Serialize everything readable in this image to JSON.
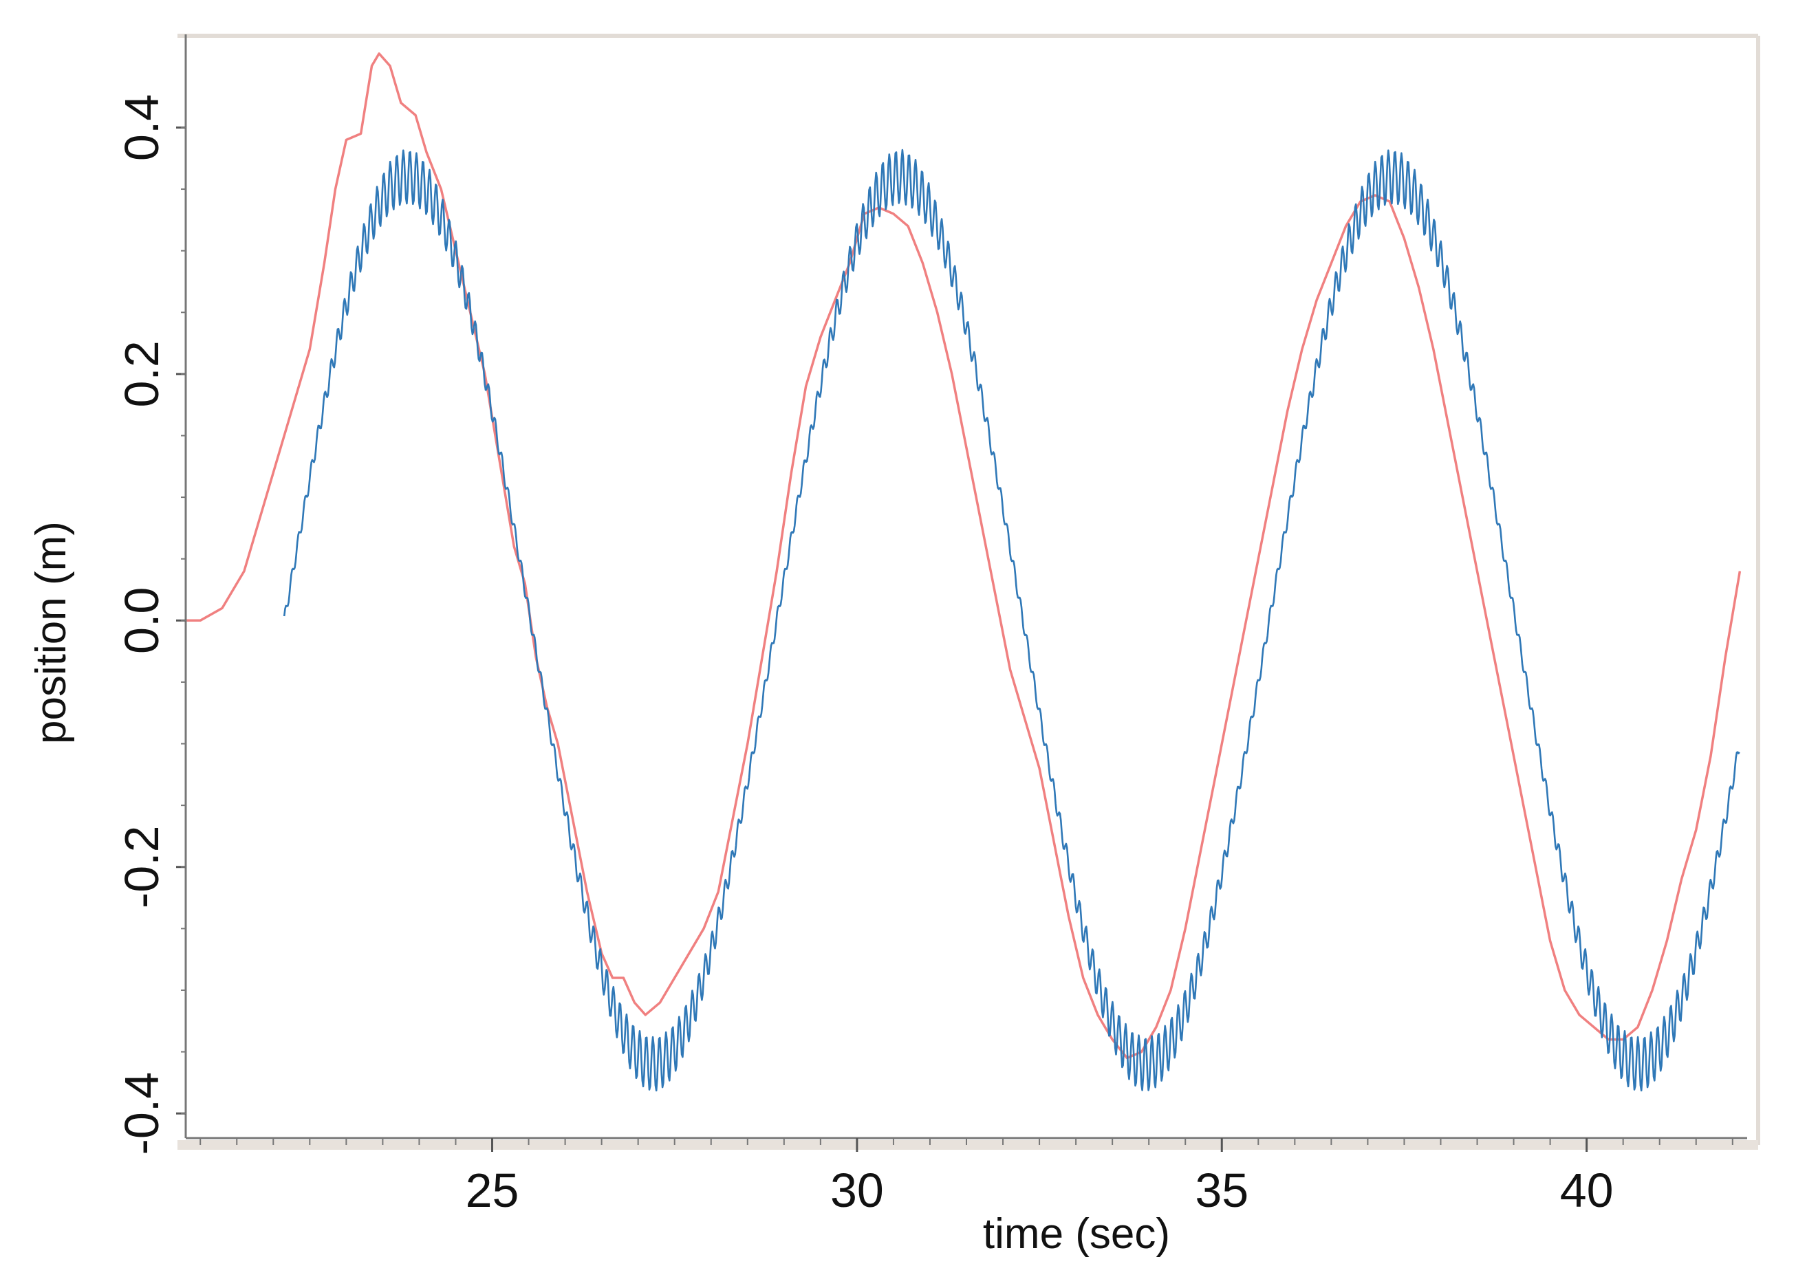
{
  "chart_data": {
    "type": "line",
    "title": "",
    "xlabel": "time (sec)",
    "ylabel": "position (m)",
    "xlim": [
      20.8,
      42.2
    ],
    "ylim": [
      -0.42,
      0.47
    ],
    "x_ticks": [
      {
        "value": 25,
        "label": "25"
      },
      {
        "value": 30,
        "label": "30"
      },
      {
        "value": 35,
        "label": "35"
      },
      {
        "value": 40,
        "label": "40"
      }
    ],
    "y_ticks": [
      {
        "value": 0.4,
        "label": "0.4"
      },
      {
        "value": 0.2,
        "label": "0.2"
      },
      {
        "value": 0.0,
        "label": "0.0"
      },
      {
        "value": -0.2,
        "label": "-0.2"
      },
      {
        "value": -0.4,
        "label": "-0.4"
      }
    ],
    "minor_tick_step": 0.5,
    "grid": false,
    "legend": "none",
    "series": [
      {
        "color": "#f08080",
        "points": [
          [
            20.8,
            0.0
          ],
          [
            21.0,
            0.0
          ],
          [
            21.3,
            0.01
          ],
          [
            21.6,
            0.04
          ],
          [
            21.9,
            0.1
          ],
          [
            22.2,
            0.16
          ],
          [
            22.5,
            0.22
          ],
          [
            22.7,
            0.29
          ],
          [
            22.85,
            0.35
          ],
          [
            23.0,
            0.39
          ],
          [
            23.2,
            0.395
          ],
          [
            23.35,
            0.45
          ],
          [
            23.45,
            0.46
          ],
          [
            23.6,
            0.45
          ],
          [
            23.75,
            0.42
          ],
          [
            23.95,
            0.41
          ],
          [
            24.1,
            0.38
          ],
          [
            24.3,
            0.35
          ],
          [
            24.5,
            0.3
          ],
          [
            24.7,
            0.25
          ],
          [
            24.9,
            0.2
          ],
          [
            25.1,
            0.13
          ],
          [
            25.3,
            0.06
          ],
          [
            25.45,
            0.03
          ],
          [
            25.6,
            -0.03
          ],
          [
            25.75,
            -0.07
          ],
          [
            25.9,
            -0.1
          ],
          [
            26.1,
            -0.16
          ],
          [
            26.3,
            -0.22
          ],
          [
            26.5,
            -0.27
          ],
          [
            26.65,
            -0.29
          ],
          [
            26.8,
            -0.29
          ],
          [
            26.95,
            -0.31
          ],
          [
            27.1,
            -0.32
          ],
          [
            27.3,
            -0.31
          ],
          [
            27.5,
            -0.29
          ],
          [
            27.7,
            -0.27
          ],
          [
            27.9,
            -0.25
          ],
          [
            28.1,
            -0.22
          ],
          [
            28.3,
            -0.16
          ],
          [
            28.5,
            -0.1
          ],
          [
            28.7,
            -0.03
          ],
          [
            28.9,
            0.04
          ],
          [
            29.1,
            0.12
          ],
          [
            29.3,
            0.19
          ],
          [
            29.5,
            0.23
          ],
          [
            29.7,
            0.26
          ],
          [
            29.9,
            0.29
          ],
          [
            30.1,
            0.33
          ],
          [
            30.3,
            0.335
          ],
          [
            30.5,
            0.33
          ],
          [
            30.7,
            0.32
          ],
          [
            30.9,
            0.29
          ],
          [
            31.1,
            0.25
          ],
          [
            31.3,
            0.2
          ],
          [
            31.5,
            0.14
          ],
          [
            31.7,
            0.08
          ],
          [
            31.9,
            0.02
          ],
          [
            32.1,
            -0.04
          ],
          [
            32.3,
            -0.08
          ],
          [
            32.5,
            -0.12
          ],
          [
            32.7,
            -0.18
          ],
          [
            32.9,
            -0.24
          ],
          [
            33.1,
            -0.29
          ],
          [
            33.3,
            -0.32
          ],
          [
            33.5,
            -0.34
          ],
          [
            33.7,
            -0.355
          ],
          [
            33.9,
            -0.35
          ],
          [
            34.1,
            -0.33
          ],
          [
            34.3,
            -0.3
          ],
          [
            34.5,
            -0.25
          ],
          [
            34.7,
            -0.19
          ],
          [
            34.9,
            -0.13
          ],
          [
            35.1,
            -0.07
          ],
          [
            35.3,
            -0.01
          ],
          [
            35.5,
            0.05
          ],
          [
            35.7,
            0.11
          ],
          [
            35.9,
            0.17
          ],
          [
            36.1,
            0.22
          ],
          [
            36.3,
            0.26
          ],
          [
            36.5,
            0.29
          ],
          [
            36.7,
            0.32
          ],
          [
            36.9,
            0.34
          ],
          [
            37.1,
            0.345
          ],
          [
            37.3,
            0.34
          ],
          [
            37.5,
            0.31
          ],
          [
            37.7,
            0.27
          ],
          [
            37.9,
            0.22
          ],
          [
            38.1,
            0.16
          ],
          [
            38.3,
            0.1
          ],
          [
            38.5,
            0.04
          ],
          [
            38.7,
            -0.02
          ],
          [
            38.9,
            -0.08
          ],
          [
            39.1,
            -0.14
          ],
          [
            39.3,
            -0.2
          ],
          [
            39.5,
            -0.26
          ],
          [
            39.7,
            -0.3
          ],
          [
            39.9,
            -0.32
          ],
          [
            40.1,
            -0.33
          ],
          [
            40.3,
            -0.34
          ],
          [
            40.5,
            -0.34
          ],
          [
            40.7,
            -0.33
          ],
          [
            40.9,
            -0.3
          ],
          [
            41.1,
            -0.26
          ],
          [
            41.3,
            -0.21
          ],
          [
            41.5,
            -0.17
          ],
          [
            41.7,
            -0.11
          ],
          [
            41.9,
            -0.03
          ],
          [
            42.1,
            0.04
          ]
        ]
      },
      {
        "color": "#2f78b7",
        "function": {
          "kind": "sine",
          "amplitude": 0.36,
          "period": 6.75,
          "phase_zero": 22.15,
          "x_start": 22.15,
          "x_end": 42.1
        },
        "noise": {
          "amplitude": 0.022,
          "period": 0.09
        }
      }
    ]
  }
}
